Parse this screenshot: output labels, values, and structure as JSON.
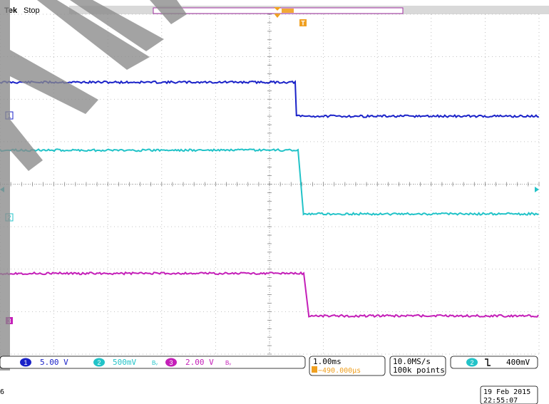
{
  "header": {
    "brand": "Tek",
    "status": "Stop"
  },
  "trigger": {
    "position_marker": "T",
    "source_channel": "2",
    "slope_symbol": "˥",
    "level": "400mV",
    "position_glyph": "T"
  },
  "channels": [
    {
      "number": "1",
      "scale": "5.00 V",
      "color": "#1a22c8",
      "bw_icon": ""
    },
    {
      "number": "2",
      "scale": "500mV",
      "color": "#22c3c8",
      "bw_icon": "Bᵥ"
    },
    {
      "number": "3",
      "scale": "2.00 V",
      "color": "#c41fb8",
      "bw_icon": "Bᵥ"
    }
  ],
  "ground_markers": [
    "1",
    "2",
    "3"
  ],
  "timebase": {
    "scale": "1.00ms",
    "delay_prefix": "T→▼",
    "delay": "−490.000μs"
  },
  "acquisition": {
    "sample_rate": "10.0MS/s",
    "record_length": "100k points"
  },
  "timestamp": {
    "date": "19 Feb  2015",
    "time": "22:55:07"
  },
  "footer_left": "6",
  "colors": {
    "background": "#ffffff",
    "grid": "#b0b0b0",
    "ch1": "#1a22c8",
    "ch2": "#22c3c8",
    "ch3": "#c41fb8",
    "trigger": "#f0a020",
    "record_bar": "#a030a0",
    "overlay_stripe": "#8a8a8a"
  },
  "waveforms": {
    "x_unit": "ms",
    "x_range": [
      -5,
      5
    ],
    "ch1": {
      "level_div_before": 2.4,
      "level_div_after": 1.6,
      "edge_ms": 0.5
    },
    "ch2": {
      "level_div_before": 0.8,
      "level_div_after": -0.7,
      "edge_ms": 0.55
    },
    "ch3": {
      "level_div_before": -2.1,
      "level_div_after": -3.1,
      "edge_ms": 0.65
    }
  }
}
